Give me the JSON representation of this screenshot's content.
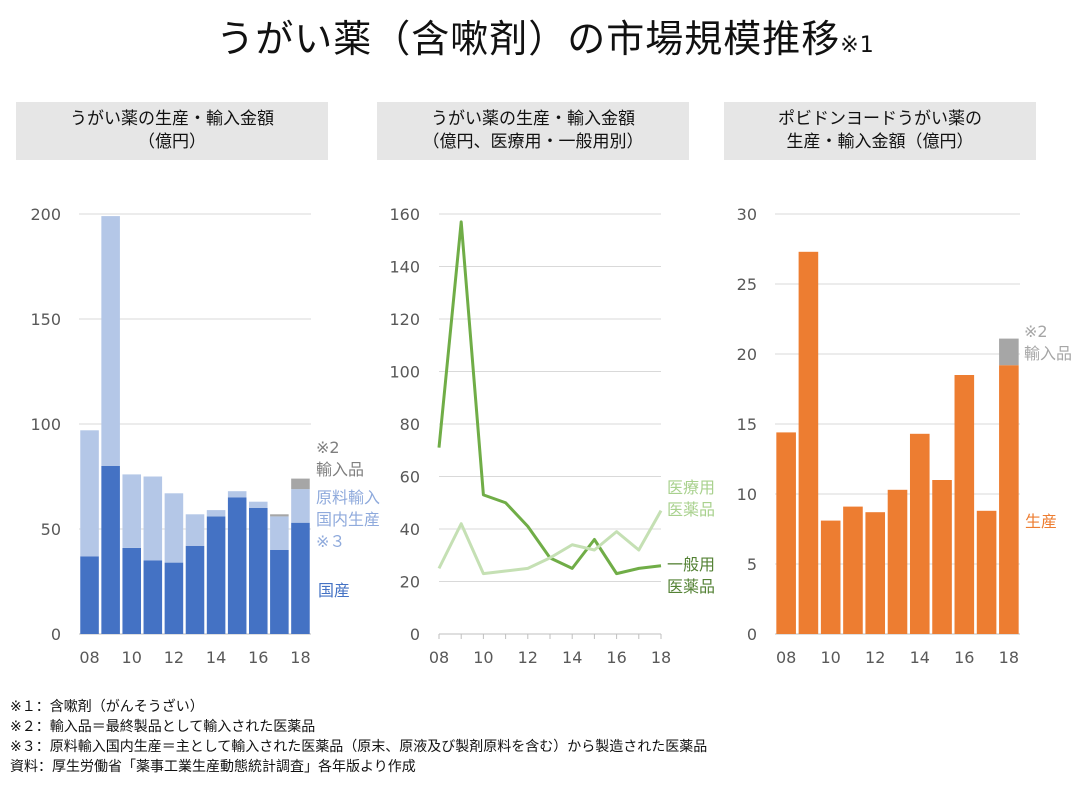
{
  "title": {
    "main": "うがい薬（含嗽剤）の市場規模推移",
    "note_mark": "※1"
  },
  "chart_data": [
    {
      "type": "bar",
      "stacked": true,
      "header": [
        "うがい薬の生産・輸入金額",
        "（億円）"
      ],
      "x": [
        8,
        9,
        10,
        11,
        12,
        13,
        14,
        15,
        16,
        17,
        18
      ],
      "xticks": [
        "08",
        "10",
        "12",
        "14",
        "16",
        "18"
      ],
      "yticks": [
        "0",
        "50",
        "100",
        "150",
        "200"
      ],
      "ylim": [
        0,
        200
      ],
      "series": [
        {
          "name": "国産",
          "color": "#4472c4",
          "values": [
            37,
            80,
            41,
            35,
            34,
            42,
            56,
            65,
            60,
            40,
            53
          ]
        },
        {
          "name": "原料輸入国内生産※３",
          "color": "#b4c7e7",
          "values": [
            60,
            119,
            35,
            40,
            33,
            15,
            3,
            3,
            3,
            16,
            16
          ]
        },
        {
          "name": "※2輸入品",
          "color": "#a6a6a6",
          "values": [
            0,
            0,
            0,
            0,
            0,
            0,
            0,
            0,
            0,
            1,
            5
          ]
        }
      ],
      "labels": {
        "import": [
          "※2",
          "輸入品"
        ],
        "raw": [
          "原料輸入",
          "国内生産",
          "※３"
        ],
        "domestic": [
          "国産"
        ]
      }
    },
    {
      "type": "line",
      "header": [
        "うがい薬の生産・輸入金額",
        "（億円、医療用・一般用別）"
      ],
      "x": [
        8,
        9,
        10,
        11,
        12,
        13,
        14,
        15,
        16,
        17,
        18
      ],
      "xticks": [
        "08",
        "10",
        "12",
        "14",
        "16",
        "18"
      ],
      "yticks": [
        "0",
        "20",
        "40",
        "60",
        "80",
        "100",
        "120",
        "140",
        "160"
      ],
      "ylim": [
        0,
        160
      ],
      "series": [
        {
          "name": "一般用医薬品",
          "color": "#70ad47",
          "values": [
            71,
            157,
            53,
            50,
            41,
            29,
            25,
            36,
            23,
            25,
            26
          ]
        },
        {
          "name": "医療用医薬品",
          "color": "#c5e0b4",
          "values": [
            25,
            42,
            23,
            24,
            25,
            29,
            34,
            32,
            39,
            32,
            47
          ]
        }
      ],
      "labels": {
        "medical": [
          "医療用",
          "医薬品"
        ],
        "general": [
          "一般用",
          "医薬品"
        ]
      }
    },
    {
      "type": "bar",
      "stacked": true,
      "header": [
        "ポビドンヨードうがい薬の",
        "生産・輸入金額（億円）"
      ],
      "x": [
        8,
        9,
        10,
        11,
        12,
        13,
        14,
        15,
        16,
        17,
        18
      ],
      "xticks": [
        "08",
        "10",
        "12",
        "14",
        "16",
        "18"
      ],
      "yticks": [
        "0",
        "5",
        "10",
        "15",
        "20",
        "25",
        "30"
      ],
      "ylim": [
        0,
        30
      ],
      "series": [
        {
          "name": "生産",
          "color": "#ed7d31",
          "values": [
            14.4,
            27.3,
            8.1,
            9.1,
            8.7,
            10.3,
            14.3,
            11.0,
            18.5,
            8.8,
            19.2
          ]
        },
        {
          "name": "※2輸入品",
          "color": "#a6a6a6",
          "values": [
            0,
            0,
            0,
            0,
            0,
            0,
            0,
            0,
            0,
            0,
            1.9
          ]
        }
      ],
      "labels": {
        "import": [
          "※2",
          "輸入品"
        ],
        "production": [
          "生産"
        ]
      }
    }
  ],
  "notes": [
    "※１：含嗽剤（がんそうざい）",
    "※２：輸入品＝最終製品として輸入された医薬品",
    "※３：原料輸入国内生産＝主として輸入された医薬品（原末、原液及び製剤原料を含む）から製造された医薬品",
    "資料：厚生労働省「薬事工業生産動態統計調査」各年版より作成"
  ]
}
